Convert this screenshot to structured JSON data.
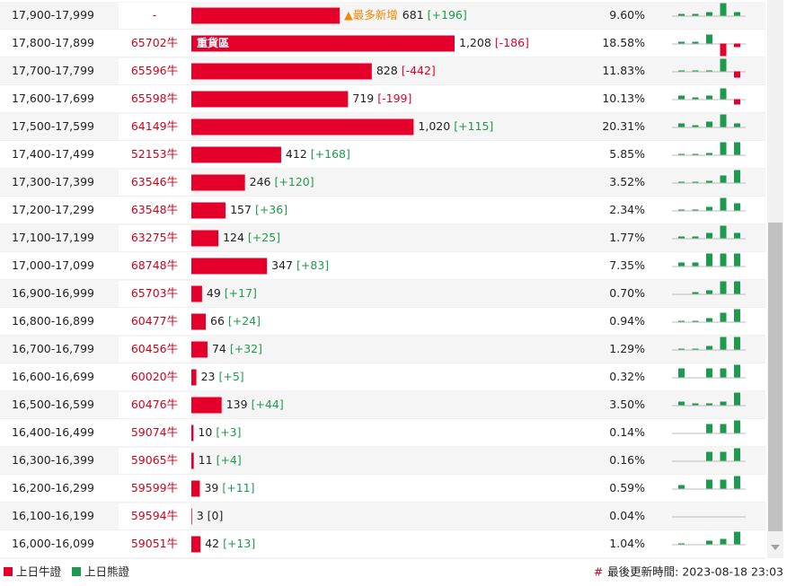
{
  "table": {
    "rows": [
      {
        "range": "17,900-17,999",
        "code": "-",
        "count": 681,
        "change": "[+196]",
        "pct": "9.60%",
        "note": "▲最多新增",
        "spark": [
          2,
          2,
          4,
          14,
          4
        ]
      },
      {
        "range": "17,800-17,899",
        "code": "65702牛",
        "count": 1208,
        "count_label": "1,208",
        "change": "[-186]",
        "pct": "18.58%",
        "tag": "重貨區",
        "spark": [
          2,
          2,
          10,
          -14,
          -4
        ]
      },
      {
        "range": "17,700-17,799",
        "code": "65596牛",
        "count": 828,
        "change": "[-442]",
        "pct": "11.83%",
        "spark": [
          1,
          1,
          1,
          14,
          -7
        ]
      },
      {
        "range": "17,600-17,699",
        "code": "65598牛",
        "count": 719,
        "change": "[-199]",
        "pct": "10.13%",
        "spark": [
          4,
          2,
          4,
          12,
          -6
        ]
      },
      {
        "range": "17,500-17,599",
        "code": "64149牛",
        "count": 1020,
        "count_label": "1,020",
        "change": "[+115]",
        "pct": "20.31%",
        "spark": [
          4,
          2,
          6,
          14,
          4
        ]
      },
      {
        "range": "17,400-17,499",
        "code": "52153牛",
        "count": 412,
        "change": "[+168]",
        "pct": "5.85%",
        "spark": [
          1,
          1,
          2,
          14,
          14
        ]
      },
      {
        "range": "17,300-17,399",
        "code": "63546牛",
        "count": 246,
        "change": "[+120]",
        "pct": "3.52%",
        "spark": [
          1,
          1,
          2,
          8,
          14
        ]
      },
      {
        "range": "17,200-17,299",
        "code": "63548牛",
        "count": 157,
        "change": "[+36]",
        "pct": "2.34%",
        "spark": [
          1,
          1,
          4,
          14,
          8
        ]
      },
      {
        "range": "17,100-17,199",
        "code": "63275牛",
        "count": 124,
        "change": "[+25]",
        "pct": "1.77%",
        "spark": [
          2,
          2,
          6,
          14,
          6
        ]
      },
      {
        "range": "17,000-17,099",
        "code": "68748牛",
        "count": 347,
        "change": "[+83]",
        "pct": "7.35%",
        "spark": [
          4,
          4,
          14,
          14,
          14
        ]
      },
      {
        "range": "16,900-16,999",
        "code": "65703牛",
        "count": 49,
        "change": "[+17]",
        "pct": "0.70%",
        "spark": [
          0,
          2,
          4,
          14,
          14
        ]
      },
      {
        "range": "16,800-16,899",
        "code": "60477牛",
        "count": 66,
        "change": "[+24]",
        "pct": "0.94%",
        "spark": [
          1,
          1,
          4,
          10,
          14
        ]
      },
      {
        "range": "16,700-16,799",
        "code": "60456牛",
        "count": 74,
        "change": "[+32]",
        "pct": "1.29%",
        "spark": [
          1,
          1,
          4,
          14,
          14
        ]
      },
      {
        "range": "16,600-16,699",
        "code": "60020牛",
        "count": 23,
        "change": "[+5]",
        "pct": "0.32%",
        "spark": [
          10,
          0,
          10,
          10,
          14
        ]
      },
      {
        "range": "16,500-16,599",
        "code": "60476牛",
        "count": 139,
        "change": "[+44]",
        "pct": "3.50%",
        "spark": [
          4,
          2,
          2,
          4,
          14
        ]
      },
      {
        "range": "16,400-16,499",
        "code": "59074牛",
        "count": 10,
        "change": "[+3]",
        "pct": "0.14%",
        "spark": [
          0,
          0,
          10,
          10,
          14
        ]
      },
      {
        "range": "16,300-16,399",
        "code": "59065牛",
        "count": 11,
        "change": "[+4]",
        "pct": "0.16%",
        "spark": [
          0,
          0,
          10,
          10,
          14
        ]
      },
      {
        "range": "16,200-16,299",
        "code": "59599牛",
        "count": 39,
        "change": "[+11]",
        "pct": "0.59%",
        "spark": [
          4,
          0,
          10,
          10,
          14
        ]
      },
      {
        "range": "16,100-16,199",
        "code": "59594牛",
        "count": 3,
        "change": "[0]",
        "pct": "0.04%",
        "spark": [
          0,
          0,
          0,
          0,
          0
        ]
      },
      {
        "range": "16,000-16,099",
        "code": "59051牛",
        "count": 42,
        "change": "[+13]",
        "pct": "1.04%",
        "spark": [
          1,
          0,
          4,
          6,
          14
        ]
      }
    ]
  },
  "legend": [
    {
      "label": "上日牛證",
      "color": "#e4002b"
    },
    {
      "label": "上日熊證",
      "color": "#1e9a4e"
    }
  ],
  "footer": {
    "prefix": "#",
    "update": "最後更新時間: 2023-08-18 23:03"
  }
}
